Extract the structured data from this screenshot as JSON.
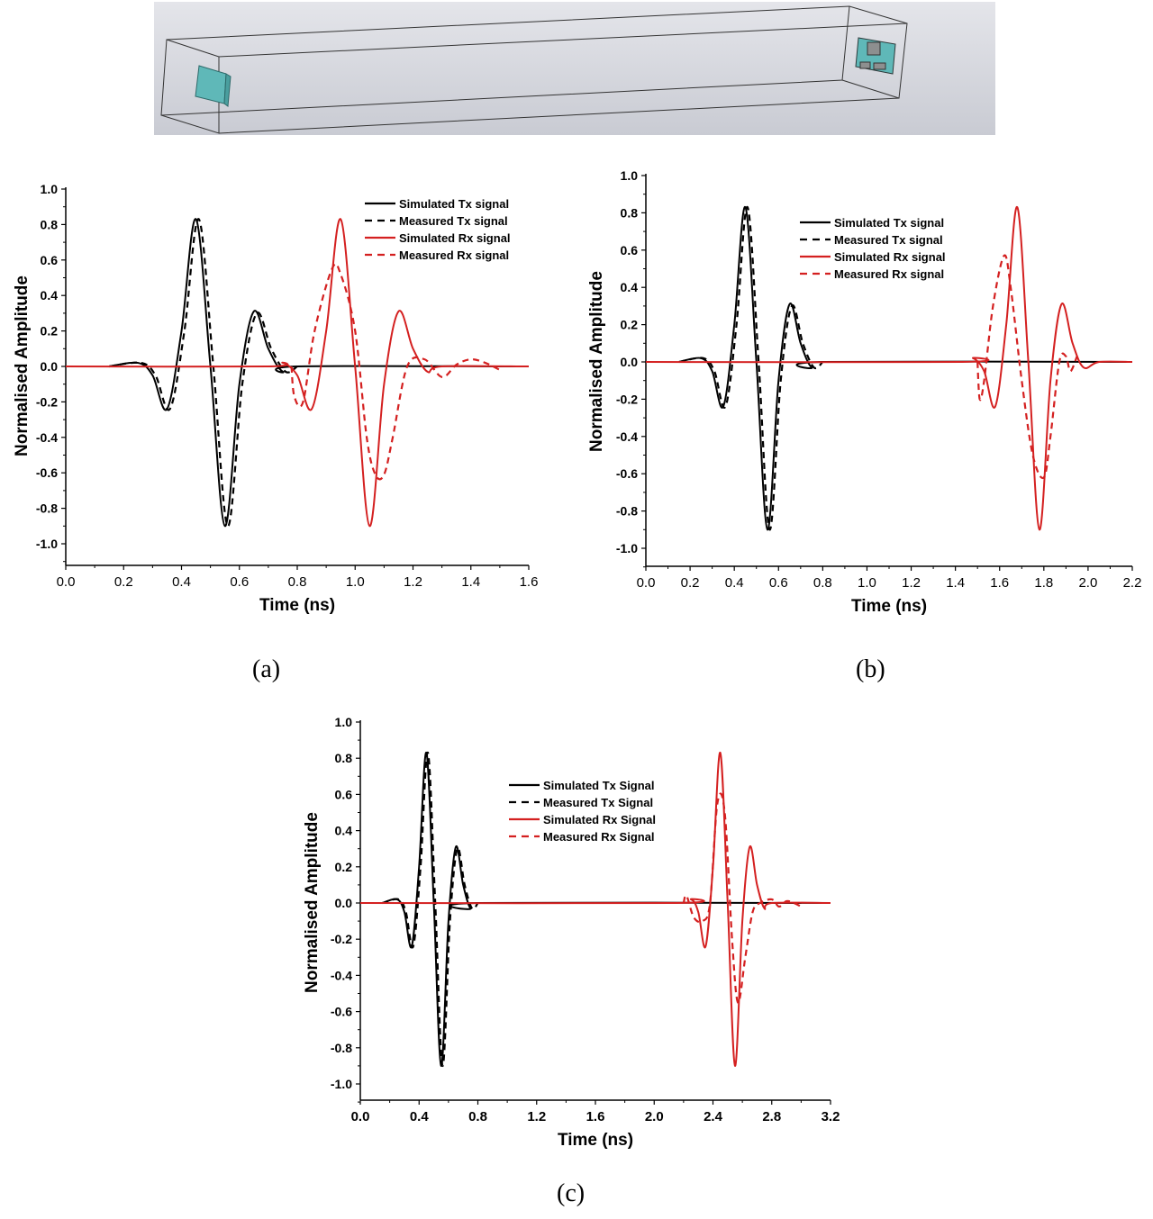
{
  "scene": {
    "description": "3D simulation model: rectangular box with Tx antenna (left) and Rx antenna (right)",
    "background_color": "#d2d4dc",
    "antenna_color": "#5fb8b8"
  },
  "captions": [
    "(a)",
    "(b)",
    "(c)"
  ],
  "colors": {
    "tx": "#000000",
    "rx": "#d42020"
  },
  "chart_data": [
    {
      "type": "line",
      "panel": "(a)",
      "xlabel": "Time (ns)",
      "ylabel": "Normalised Amplitude",
      "xlim": [
        0.0,
        1.6
      ],
      "ylim": [
        -1.1,
        1.0
      ],
      "xticks": [
        "0.0",
        "0.2",
        "0.4",
        "0.6",
        "0.8",
        "1.0",
        "1.2",
        "1.4",
        "1.6"
      ],
      "yticks": [
        "1.0",
        "0.8",
        "0.6",
        "0.4",
        "0.2",
        "0.0",
        "-0.2",
        "-0.4",
        "-0.6",
        "-0.8",
        "-1.0"
      ],
      "legend": [
        "Simulated Tx signal",
        "Measured Tx signal",
        "Simulated Rx signal",
        "Measured Rx signal"
      ],
      "legend_position": "upper right",
      "series": [
        {
          "name": "Simulated Tx signal",
          "style": "solid",
          "color": "#000000",
          "x": [
            0.15,
            0.25,
            0.3,
            0.35,
            0.4,
            0.45,
            0.5,
            0.55,
            0.6,
            0.65,
            0.7,
            0.75,
            0.8,
            1.6
          ],
          "y": [
            0.0,
            0.02,
            -0.05,
            -0.24,
            0.2,
            0.83,
            0.0,
            -0.9,
            -0.1,
            0.31,
            0.1,
            -0.03,
            0.0,
            0.0
          ]
        },
        {
          "name": "Measured Tx signal",
          "style": "dashed",
          "color": "#000000",
          "x": [
            0.15,
            0.26,
            0.31,
            0.36,
            0.41,
            0.46,
            0.51,
            0.56,
            0.61,
            0.66,
            0.71,
            0.76,
            0.8
          ],
          "y": [
            0.0,
            0.02,
            -0.05,
            -0.24,
            0.2,
            0.83,
            0.0,
            -0.9,
            -0.1,
            0.3,
            0.1,
            -0.03,
            0.0
          ]
        },
        {
          "name": "Simulated Rx signal",
          "style": "solid",
          "color": "#d42020",
          "x": [
            0.0,
            0.7,
            0.75,
            0.8,
            0.85,
            0.9,
            0.95,
            1.0,
            1.05,
            1.1,
            1.15,
            1.2,
            1.25,
            1.3,
            1.6
          ],
          "y": [
            0.0,
            0.0,
            0.02,
            -0.05,
            -0.24,
            0.2,
            0.83,
            0.0,
            -0.9,
            -0.1,
            0.31,
            0.1,
            -0.03,
            0.0,
            0.0
          ]
        },
        {
          "name": "Measured Rx signal",
          "style": "dashed",
          "color": "#d42020",
          "x": [
            0.78,
            0.79,
            0.82,
            0.86,
            0.92,
            0.95,
            1.0,
            1.04,
            1.07,
            1.1,
            1.13,
            1.18,
            1.24,
            1.3,
            1.35,
            1.4,
            1.45,
            1.5
          ],
          "y": [
            0.0,
            -0.17,
            -0.2,
            0.2,
            0.55,
            0.52,
            0.2,
            -0.4,
            -0.61,
            -0.61,
            -0.4,
            0.0,
            0.04,
            -0.06,
            0.01,
            0.04,
            0.02,
            -0.02
          ]
        }
      ]
    },
    {
      "type": "line",
      "panel": "(b)",
      "xlabel": "Time (ns)",
      "ylabel": "Normalised Amplitude",
      "xlim": [
        0.0,
        2.2
      ],
      "ylim": [
        -1.1,
        1.0
      ],
      "xticks": [
        "0.0",
        "0.2",
        "0.4",
        "0.6",
        "0.8",
        "1.0",
        "1.2",
        "1.4",
        "1.6",
        "1.8",
        "2.0",
        "2.2"
      ],
      "yticks": [
        "1.0",
        "0.8",
        "0.6",
        "0.4",
        "0.2",
        "0.0",
        "-0.2",
        "-0.4",
        "-0.6",
        "-0.8",
        "-1.0"
      ],
      "legend": [
        "Simulated Tx signal",
        "Measured Tx signal",
        "Simulated Rx signal",
        "Measured Rx signal"
      ],
      "legend_position": "upper center",
      "series": [
        {
          "name": "Simulated Tx signal",
          "style": "solid",
          "color": "#000000",
          "x": [
            0.15,
            0.25,
            0.3,
            0.35,
            0.4,
            0.45,
            0.5,
            0.55,
            0.6,
            0.65,
            0.7,
            0.75,
            0.8,
            2.2
          ],
          "y": [
            0.0,
            0.02,
            -0.05,
            -0.24,
            0.2,
            0.83,
            0.0,
            -0.9,
            -0.1,
            0.31,
            0.1,
            -0.03,
            0.0,
            0.0
          ]
        },
        {
          "name": "Measured Tx signal",
          "style": "dashed",
          "color": "#000000",
          "x": [
            0.15,
            0.26,
            0.31,
            0.36,
            0.41,
            0.46,
            0.51,
            0.56,
            0.61,
            0.66,
            0.71,
            0.76,
            0.8
          ],
          "y": [
            0.0,
            0.02,
            -0.05,
            -0.24,
            0.2,
            0.83,
            0.0,
            -0.9,
            -0.1,
            0.3,
            0.1,
            -0.03,
            0.0
          ]
        },
        {
          "name": "Simulated Rx signal",
          "style": "solid",
          "color": "#d42020",
          "x": [
            0.0,
            1.43,
            1.48,
            1.53,
            1.58,
            1.63,
            1.68,
            1.73,
            1.78,
            1.83,
            1.88,
            1.93,
            1.98,
            2.05,
            2.2
          ],
          "y": [
            0.0,
            0.0,
            0.02,
            -0.05,
            -0.24,
            0.2,
            0.83,
            0.0,
            -0.9,
            -0.1,
            0.31,
            0.1,
            -0.03,
            0.0,
            0.0
          ]
        },
        {
          "name": "Measured Rx signal",
          "style": "dashed",
          "color": "#d42020",
          "x": [
            1.5,
            1.51,
            1.53,
            1.57,
            1.62,
            1.65,
            1.7,
            1.75,
            1.8,
            1.83,
            1.87,
            1.9,
            1.92,
            1.95
          ],
          "y": [
            0.0,
            -0.2,
            -0.1,
            0.3,
            0.57,
            0.4,
            -0.1,
            -0.5,
            -0.62,
            -0.4,
            0.0,
            0.03,
            -0.05,
            0.03
          ]
        }
      ]
    },
    {
      "type": "line",
      "panel": "(c)",
      "xlabel": "Time (ns)",
      "ylabel": "Normalised Amplitude",
      "xlim": [
        0.0,
        3.2
      ],
      "ylim": [
        -1.1,
        1.0
      ],
      "xticks": [
        "0.0",
        "0.4",
        "0.8",
        "1.2",
        "1.6",
        "2.0",
        "2.4",
        "2.8",
        "3.2"
      ],
      "yticks": [
        "1.0",
        "0.8",
        "0.6",
        "0.4",
        "0.2",
        "0.0",
        "-0.2",
        "-0.4",
        "-0.6",
        "-0.8",
        "-1.0"
      ],
      "legend": [
        "Simulated Tx Signal",
        "Measured Tx Signal",
        "Simulated Rx Signal",
        "Measured Rx Signal"
      ],
      "legend_position": "upper center",
      "series": [
        {
          "name": "Simulated Tx Signal",
          "style": "solid",
          "color": "#000000",
          "x": [
            0.15,
            0.25,
            0.3,
            0.35,
            0.4,
            0.45,
            0.5,
            0.55,
            0.6,
            0.65,
            0.7,
            0.75,
            0.8,
            3.2
          ],
          "y": [
            0.0,
            0.02,
            -0.05,
            -0.24,
            0.2,
            0.83,
            0.0,
            -0.9,
            -0.1,
            0.31,
            0.1,
            -0.03,
            0.0,
            0.0
          ]
        },
        {
          "name": "Measured Tx Signal",
          "style": "dashed",
          "color": "#000000",
          "x": [
            0.15,
            0.26,
            0.31,
            0.36,
            0.41,
            0.46,
            0.51,
            0.56,
            0.61,
            0.66,
            0.71,
            0.76,
            0.8
          ],
          "y": [
            0.0,
            0.02,
            -0.05,
            -0.24,
            0.2,
            0.83,
            0.0,
            -0.9,
            -0.1,
            0.3,
            0.1,
            -0.03,
            0.0
          ]
        },
        {
          "name": "Simulated Rx Signal",
          "style": "solid",
          "color": "#d42020",
          "x": [
            0.0,
            2.15,
            2.25,
            2.3,
            2.35,
            2.4,
            2.45,
            2.5,
            2.55,
            2.6,
            2.65,
            2.7,
            2.75,
            2.8,
            3.2
          ],
          "y": [
            0.0,
            0.0,
            0.02,
            -0.05,
            -0.24,
            0.2,
            0.83,
            0.0,
            -0.9,
            -0.1,
            0.31,
            0.1,
            -0.03,
            0.0,
            0.0
          ]
        },
        {
          "name": "Measured Rx Signal",
          "style": "dashed",
          "color": "#d42020",
          "x": [
            2.2,
            2.22,
            2.27,
            2.33,
            2.38,
            2.43,
            2.48,
            2.53,
            2.57,
            2.62,
            2.67,
            2.72,
            2.8,
            2.85,
            2.9,
            2.95,
            3.0
          ],
          "y": [
            0.0,
            0.04,
            -0.08,
            -0.1,
            0.0,
            0.55,
            0.5,
            -0.2,
            -0.55,
            -0.3,
            -0.05,
            0.0,
            0.02,
            -0.02,
            0.01,
            0.0,
            -0.02
          ]
        }
      ]
    }
  ]
}
